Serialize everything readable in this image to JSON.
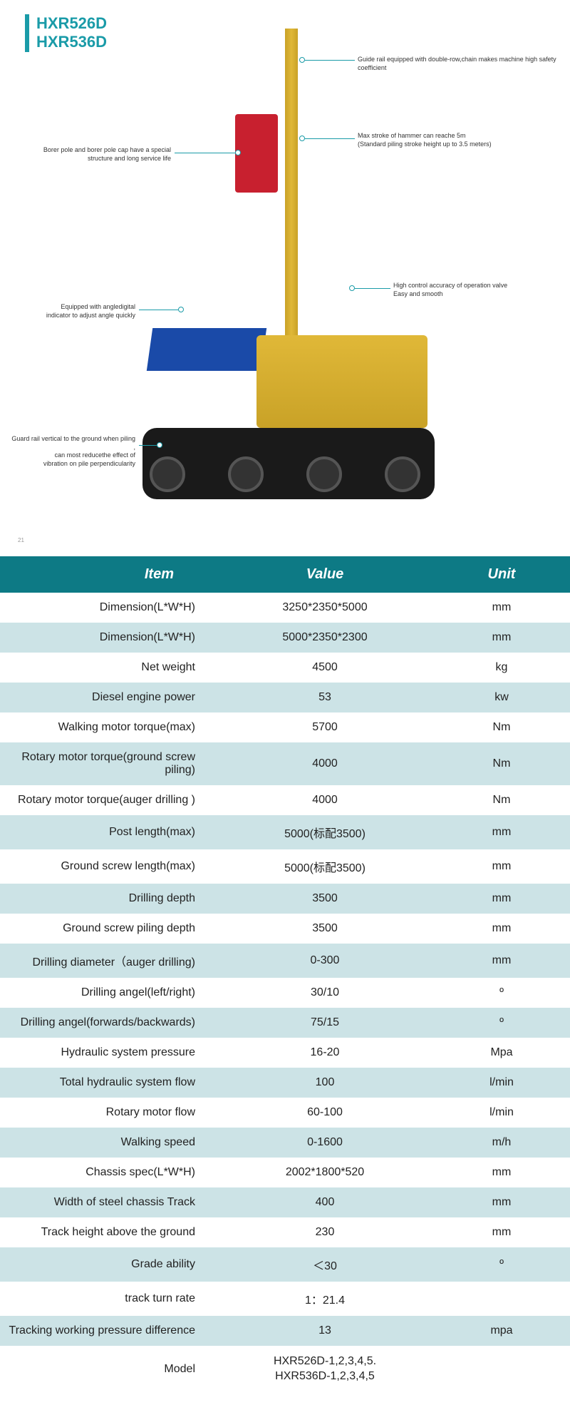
{
  "header": {
    "title1": "HXR526D",
    "title2": "HXR536D",
    "accent_color": "#1a9ba8",
    "page_number": "21"
  },
  "callouts": {
    "top_right": "Guide rail equipped with double-row,chain makes machine high safety coefficient",
    "mid_right_1a": "Max stroke of hammer can reache 5m",
    "mid_right_1b": "(Standard piling stroke height up to 3.5 meters)",
    "mid_right_2a": "High control accuracy of operation valve",
    "mid_right_2b": "Easy and smooth",
    "left_1a": "Borer pole and borer pole cap have a special",
    "left_1b": "structure and long service life",
    "left_2a": "Equipped with angledigital",
    "left_2b": "indicator to adjust angle quickly",
    "left_3a": "Guard rail vertical to the ground when piling ,",
    "left_3b": "can most reducethe effect of",
    "left_3c": "vibration on pile perpendicularity"
  },
  "table": {
    "headers": {
      "item": "Item",
      "value": "Value",
      "unit": "Unit"
    },
    "header_bg": "#0d7a85",
    "header_fg": "#ffffff",
    "row_alt_bg": "#cce3e6",
    "rows": [
      {
        "item": "Dimension(L*W*H)",
        "value": "3250*2350*5000",
        "unit": "mm"
      },
      {
        "item": "Dimension(L*W*H)",
        "value": "5000*2350*2300",
        "unit": "mm"
      },
      {
        "item": "Net weight",
        "value": "4500",
        "unit": "kg"
      },
      {
        "item": "Diesel engine power",
        "value": "53",
        "unit": "kw"
      },
      {
        "item": "Walking motor torque(max)",
        "value": "5700",
        "unit": "Nm"
      },
      {
        "item": "Rotary motor torque(ground screw piling)",
        "value": "4000",
        "unit": "Nm"
      },
      {
        "item": "Rotary motor torque(auger drilling )",
        "value": "4000",
        "unit": "Nm"
      },
      {
        "item": "Post length(max)",
        "value": "5000(标配3500)",
        "unit": "mm"
      },
      {
        "item": "Ground screw length(max)",
        "value": "5000(标配3500)",
        "unit": "mm"
      },
      {
        "item": "Drilling depth",
        "value": "3500",
        "unit": "mm"
      },
      {
        "item": "Ground screw piling depth",
        "value": "3500",
        "unit": "mm"
      },
      {
        "item": "Drilling diameter（auger drilling)",
        "value": "0-300",
        "unit": "mm"
      },
      {
        "item": "Drilling angel(left/right)",
        "value": "30/10",
        "unit": "º"
      },
      {
        "item": "Drilling angel(forwards/backwards)",
        "value": "75/15",
        "unit": "º"
      },
      {
        "item": "Hydraulic system pressure",
        "value": "16-20",
        "unit": "Mpa"
      },
      {
        "item": "Total hydraulic system flow",
        "value": "100",
        "unit": "l/min"
      },
      {
        "item": "Rotary motor flow",
        "value": "60-100",
        "unit": "l/min"
      },
      {
        "item": "Walking speed",
        "value": "0-1600",
        "unit": "m/h"
      },
      {
        "item": "Chassis spec(L*W*H)",
        "value": "2002*1800*520",
        "unit": "mm"
      },
      {
        "item": "Width of steel chassis Track",
        "value": "400",
        "unit": "mm"
      },
      {
        "item": "Track height above the ground",
        "value": "230",
        "unit": "mm"
      },
      {
        "item": "Grade ability",
        "value": "＜30",
        "unit": "º"
      },
      {
        "item": "track turn rate",
        "value": "1：21.4",
        "unit": ""
      },
      {
        "item": "Tracking working pressure difference",
        "value": "13",
        "unit": "mpa"
      },
      {
        "item": "Model",
        "value": "HXR526D-1,2,3,4,5.\nHXR536D-1,2,3,4,5",
        "unit": ""
      }
    ]
  }
}
